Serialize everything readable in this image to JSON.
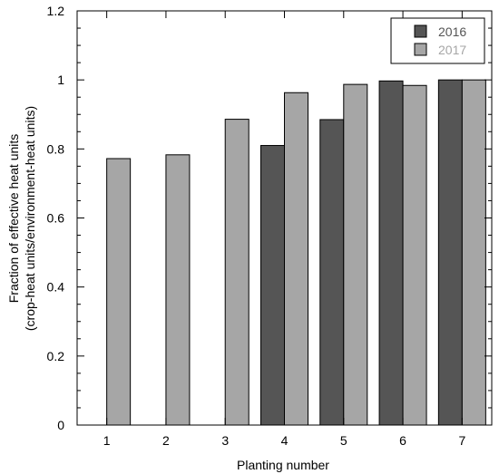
{
  "chart_data": {
    "type": "bar",
    "title": "",
    "xlabel": "Planting number",
    "ylabel": [
      "Fraction of effective heat units",
      "(crop-heat units/environment-heat units)"
    ],
    "categories": [
      "1",
      "2",
      "3",
      "4",
      "5",
      "6",
      "7"
    ],
    "ylim": [
      0,
      1.2
    ],
    "yticks": [
      "0",
      "0.2",
      "0.4",
      "0.6",
      "0.8",
      "1",
      "1.2"
    ],
    "grid": false,
    "legend_position": "top-right",
    "series": [
      {
        "name": "2016",
        "color": "#555555",
        "values": [
          null,
          null,
          null,
          0.81,
          0.885,
          0.997,
          1.0
        ]
      },
      {
        "name": "2017",
        "color": "#a6a6a6",
        "values": [
          0.772,
          0.783,
          0.886,
          0.963,
          0.987,
          0.984,
          1.0
        ]
      }
    ]
  }
}
